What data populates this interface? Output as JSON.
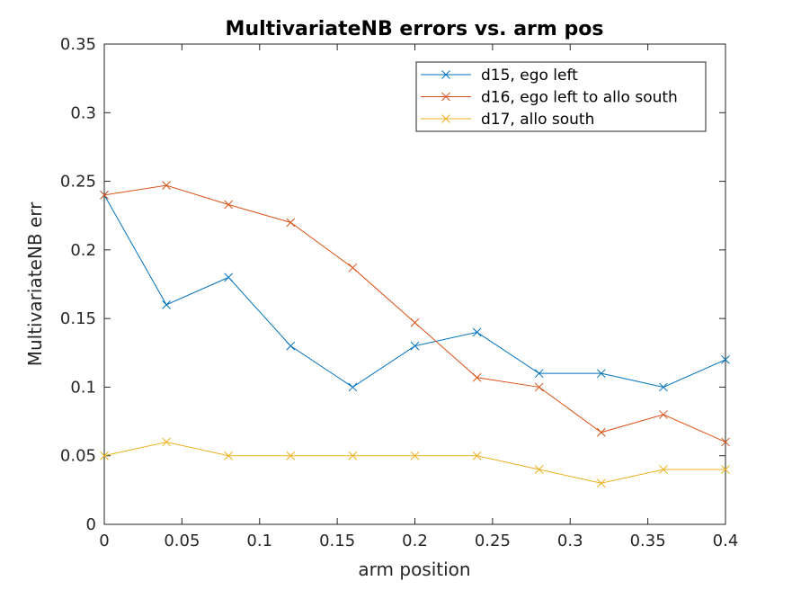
{
  "chart_data": {
    "type": "line",
    "title": "MultivariateNB errors vs. arm pos",
    "xlabel": "arm position",
    "ylabel": "MultivariateNB err",
    "xlim": [
      0,
      0.4
    ],
    "ylim": [
      0,
      0.35
    ],
    "xticks": [
      0,
      0.05,
      0.1,
      0.15,
      0.2,
      0.25,
      0.3,
      0.35,
      0.4
    ],
    "xtick_labels": [
      "0",
      "0.05",
      "0.1",
      "0.15",
      "0.2",
      "0.25",
      "0.3",
      "0.35",
      "0.4"
    ],
    "yticks": [
      0,
      0.05,
      0.1,
      0.15,
      0.2,
      0.25,
      0.3,
      0.35
    ],
    "ytick_labels": [
      "0",
      "0.05",
      "0.1",
      "0.15",
      "0.2",
      "0.25",
      "0.3",
      "0.35"
    ],
    "grid": false,
    "legend_position": "top-right",
    "x": [
      0,
      0.04,
      0.08,
      0.12,
      0.16,
      0.2,
      0.24,
      0.28,
      0.32,
      0.36,
      0.4
    ],
    "series": [
      {
        "name": "d15, ego left",
        "color": "#0072BD",
        "marker": "x",
        "values": [
          0.24,
          0.16,
          0.18,
          0.13,
          0.1,
          0.13,
          0.14,
          0.11,
          0.11,
          0.1,
          0.12
        ]
      },
      {
        "name": "d16, ego left to allo south",
        "color": "#D95319",
        "marker": "x",
        "values": [
          0.24,
          0.247,
          0.233,
          0.22,
          0.187,
          0.147,
          0.107,
          0.1,
          0.067,
          0.08,
          0.06
        ]
      },
      {
        "name": "d17, allo south",
        "color": "#EDB120",
        "marker": "x",
        "values": [
          0.05,
          0.06,
          0.05,
          0.05,
          0.05,
          0.05,
          0.05,
          0.04,
          0.03,
          0.04,
          0.04
        ]
      }
    ]
  }
}
